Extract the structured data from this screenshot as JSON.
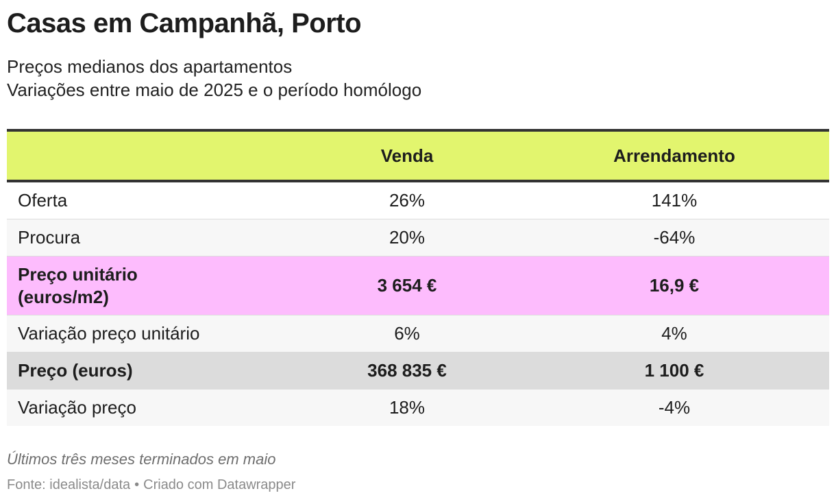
{
  "title": "Casas em Campanhã, Porto",
  "subtitle_line1": "Preços medianos dos apartamentos",
  "subtitle_line2": "Variações entre maio de 2025 e o período homólogo",
  "colors": {
    "header_bg": "#e2f56e",
    "highlight_pink": "#fdbcfd",
    "highlight_grey": "#dcdcdc",
    "alt_row": "#f7f7f7"
  },
  "chart_data": {
    "type": "table",
    "columns": [
      "",
      "Venda",
      "Arrendamento"
    ],
    "rows": [
      {
        "label": "Oferta",
        "venda": "26%",
        "arrendamento": "141%"
      },
      {
        "label_line1": "Procura",
        "venda": "20%",
        "arrendamento": "-64%"
      },
      {
        "label_line1": "Preço unitário",
        "label_line2": "(euros/m2)",
        "venda": "3 654 €",
        "arrendamento": "16,9 €"
      },
      {
        "label": "Variação preço unitário",
        "venda": "6%",
        "arrendamento": "4%"
      },
      {
        "label": "Preço (euros)",
        "venda": "368 835 €",
        "arrendamento": "1 100 €"
      },
      {
        "label": "Variação preço",
        "venda": "18%",
        "arrendamento": "-4%"
      }
    ]
  },
  "notes": "Últimos três meses terminados em maio",
  "source_label": "Fonte: idealista/data",
  "separator": "•",
  "credit": "Criado com Datawrapper"
}
